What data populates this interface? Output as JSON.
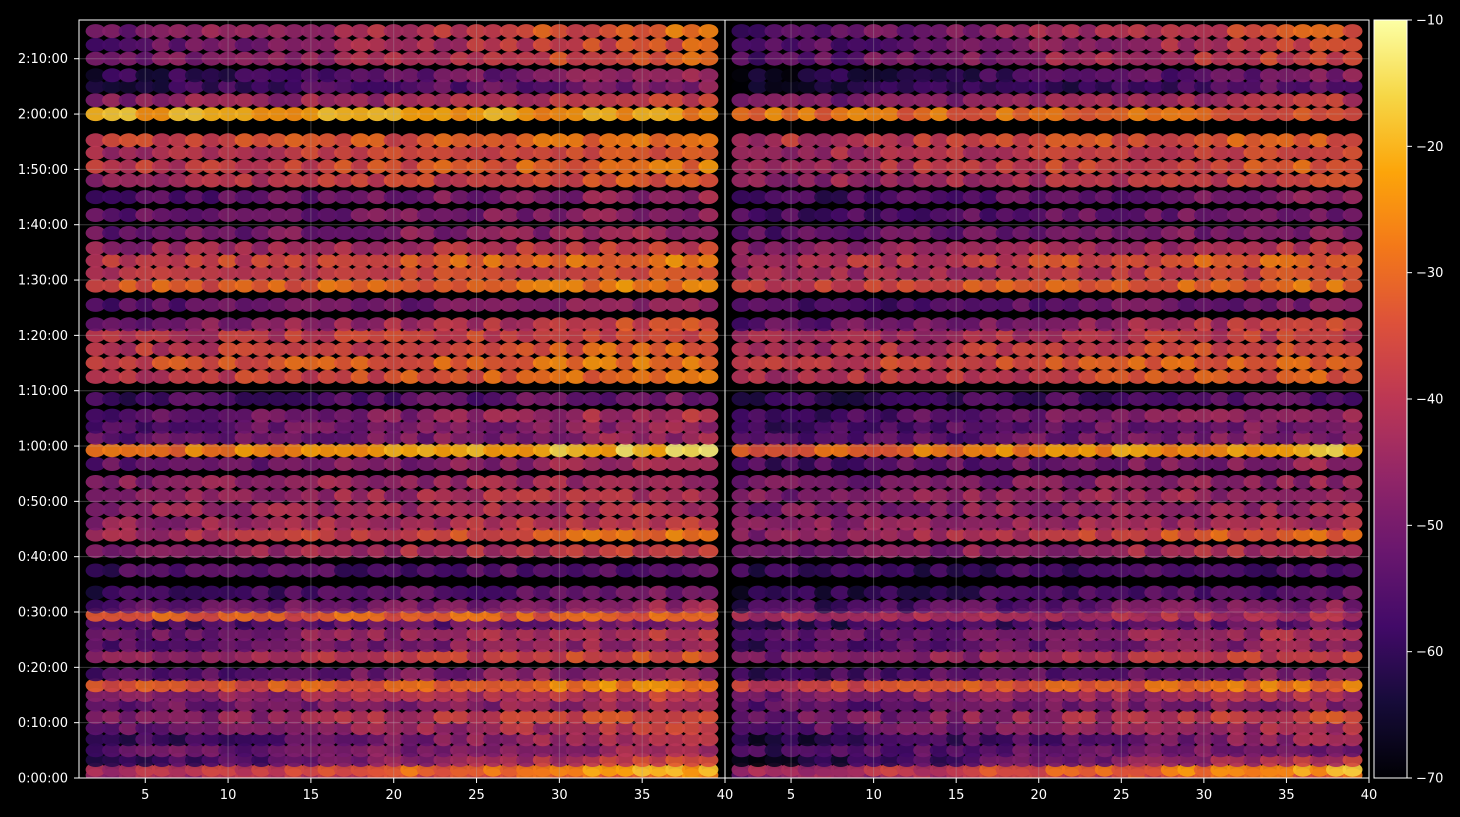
{
  "chart_data": {
    "type": "heatmap",
    "title": "",
    "xlabel": "",
    "ylabel": "",
    "panels": [
      {
        "name": "",
        "xlim": [
          1,
          40
        ],
        "ylim_seconds": [
          0,
          8220
        ],
        "xticks": [
          5,
          10,
          15,
          20,
          25,
          30,
          35,
          40
        ],
        "xtick_labels": [
          "5",
          "10",
          "15",
          "20",
          "25",
          "30",
          "35",
          "40"
        ]
      },
      {
        "name": "",
        "xlim": [
          1,
          40
        ],
        "ylim_seconds": [
          0,
          8220
        ],
        "xticks": [
          5,
          10,
          15,
          20,
          25,
          30,
          35,
          40
        ],
        "xtick_labels": [
          "5",
          "10",
          "15",
          "20",
          "25",
          "30",
          "35",
          "40"
        ]
      }
    ],
    "yticks_seconds": [
      0,
      600,
      1200,
      1800,
      2400,
      3000,
      3600,
      4200,
      4800,
      5400,
      6000,
      6600,
      7200,
      7800
    ],
    "ytick_labels": [
      "0:00:00",
      "0:10:00",
      "0:20:00",
      "0:30:00",
      "0:40:00",
      "0:50:00",
      "1:00:00",
      "1:10:00",
      "1:20:00",
      "1:30:00",
      "1:40:00",
      "1:50:00",
      "2:00:00",
      "2:10:00"
    ],
    "grid": true,
    "colormap": "inferno",
    "colorbar": {
      "range": [
        -70,
        -10
      ],
      "ticks": [
        -10,
        -20,
        -30,
        -40,
        -50,
        -60,
        -70
      ],
      "tick_labels": [
        "−10",
        "−20",
        "−30",
        "−40",
        "−50",
        "−60",
        "−70"
      ]
    },
    "x_values": [
      2,
      3,
      4,
      5,
      6,
      7,
      8,
      9,
      10,
      11,
      12,
      13,
      14,
      15,
      16,
      17,
      18,
      19,
      20,
      21,
      22,
      23,
      24,
      25,
      26,
      27,
      28,
      29,
      30,
      31,
      32,
      33,
      34,
      35,
      36,
      37,
      38,
      39
    ],
    "bands": [
      {
        "t": 30,
        "base": -47,
        "trend": 20,
        "right_panel_offset": -2
      },
      {
        "t": 90,
        "base": -44,
        "trend": 25,
        "right_panel_offset": -2
      },
      {
        "t": 195,
        "base": -62,
        "trend": 28,
        "right_panel_offset": -4
      },
      {
        "t": 300,
        "base": -54,
        "trend": 10,
        "right_panel_offset": -4
      },
      {
        "t": 420,
        "base": -60,
        "trend": 20,
        "right_panel_offset": -4
      },
      {
        "t": 540,
        "base": -52,
        "trend": 14,
        "right_panel_offset": -3
      },
      {
        "t": 660,
        "base": -50,
        "trend": 18,
        "right_panel_offset": -3
      },
      {
        "t": 795,
        "base": -52,
        "trend": 8,
        "right_panel_offset": -3
      },
      {
        "t": 900,
        "base": -48,
        "trend": 10,
        "right_panel_offset": -3
      },
      {
        "t": 1005,
        "base": -36,
        "trend": 12,
        "right_panel_offset": -3
      },
      {
        "t": 1125,
        "base": -56,
        "trend": 12,
        "right_panel_offset": -3
      },
      {
        "t": 1320,
        "base": -48,
        "trend": 16,
        "right_panel_offset": -3
      },
      {
        "t": 1440,
        "base": -56,
        "trend": 14,
        "right_panel_offset": -3
      },
      {
        "t": 1560,
        "base": -52,
        "trend": 14,
        "right_panel_offset": -3
      },
      {
        "t": 1680,
        "base": -58,
        "trend": 10,
        "right_panel_offset": -3
      },
      {
        "t": 1770,
        "base": -32,
        "trend": 0,
        "right_panel_offset": -10
      },
      {
        "t": 1860,
        "base": -56,
        "trend": 12,
        "right_panel_offset": -3
      },
      {
        "t": 2010,
        "base": -60,
        "trend": 10,
        "right_panel_offset": -3
      },
      {
        "t": 2250,
        "base": -57,
        "trend": 4,
        "right_panel_offset": -3
      },
      {
        "t": 2460,
        "base": -48,
        "trend": 12,
        "right_panel_offset": -3
      },
      {
        "t": 2640,
        "base": -44,
        "trend": 18,
        "right_panel_offset": -3
      },
      {
        "t": 2760,
        "base": -46,
        "trend": 8,
        "right_panel_offset": -3
      },
      {
        "t": 2910,
        "base": -46,
        "trend": 6,
        "right_panel_offset": -3
      },
      {
        "t": 3060,
        "base": -46,
        "trend": 6,
        "right_panel_offset": -3
      },
      {
        "t": 3210,
        "base": -48,
        "trend": 6,
        "right_panel_offset": -3
      },
      {
        "t": 3405,
        "base": -54,
        "trend": 12,
        "right_panel_offset": -3
      },
      {
        "t": 3555,
        "base": -30,
        "trend": 14,
        "right_panel_offset": -3
      },
      {
        "t": 3690,
        "base": -54,
        "trend": 10,
        "right_panel_offset": -3
      },
      {
        "t": 3810,
        "base": -56,
        "trend": 12,
        "right_panel_offset": -3
      },
      {
        "t": 3930,
        "base": -56,
        "trend": 16,
        "right_panel_offset": -3
      },
      {
        "t": 4110,
        "base": -58,
        "trend": 8,
        "right_panel_offset": -3
      },
      {
        "t": 4350,
        "base": -40,
        "trend": 12,
        "right_panel_offset": -3
      },
      {
        "t": 4500,
        "base": -36,
        "trend": 10,
        "right_panel_offset": -3
      },
      {
        "t": 4650,
        "base": -40,
        "trend": 10,
        "right_panel_offset": -3
      },
      {
        "t": 4800,
        "base": -42,
        "trend": 8,
        "right_panel_offset": -3
      },
      {
        "t": 4920,
        "base": -52,
        "trend": 18,
        "right_panel_offset": -3
      },
      {
        "t": 5130,
        "base": -54,
        "trend": 8,
        "right_panel_offset": -3
      },
      {
        "t": 5340,
        "base": -34,
        "trend": 8,
        "right_panel_offset": -3
      },
      {
        "t": 5475,
        "base": -42,
        "trend": 10,
        "right_panel_offset": -3
      },
      {
        "t": 5610,
        "base": -40,
        "trend": 14,
        "right_panel_offset": -3
      },
      {
        "t": 5745,
        "base": -46,
        "trend": 10,
        "right_panel_offset": -3
      },
      {
        "t": 5910,
        "base": -52,
        "trend": 8,
        "right_panel_offset": -3
      },
      {
        "t": 6105,
        "base": -54,
        "trend": 8,
        "right_panel_offset": -3
      },
      {
        "t": 6300,
        "base": -56,
        "trend": 12,
        "right_panel_offset": -3
      },
      {
        "t": 6480,
        "base": -44,
        "trend": 12,
        "right_panel_offset": -3
      },
      {
        "t": 6630,
        "base": -40,
        "trend": 12,
        "right_panel_offset": -3
      },
      {
        "t": 6780,
        "base": -42,
        "trend": 12,
        "right_panel_offset": -3
      },
      {
        "t": 6915,
        "base": -38,
        "trend": 10,
        "right_panel_offset": -3
      },
      {
        "t": 7200,
        "base": -20,
        "trend": -4,
        "right_panel_offset": -8
      },
      {
        "t": 7350,
        "base": -48,
        "trend": 12,
        "right_panel_offset": -3
      },
      {
        "t": 7500,
        "base": -62,
        "trend": 14,
        "right_panel_offset": -4
      },
      {
        "t": 7620,
        "base": -62,
        "trend": 18,
        "right_panel_offset": -4
      },
      {
        "t": 7800,
        "base": -52,
        "trend": 22,
        "right_panel_offset": -4
      },
      {
        "t": 7950,
        "base": -54,
        "trend": 22,
        "right_panel_offset": -4
      },
      {
        "t": 8100,
        "base": -52,
        "trend": 24,
        "right_panel_offset": -4
      }
    ]
  }
}
